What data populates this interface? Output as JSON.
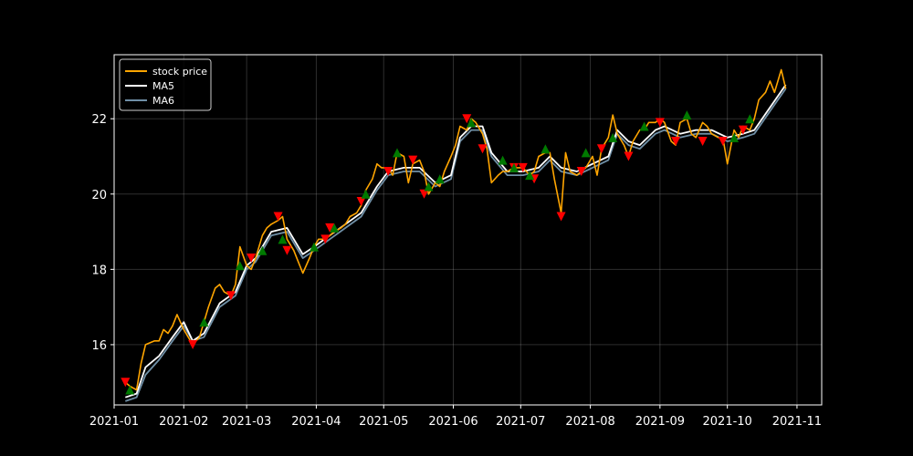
{
  "chart_data": {
    "type": "line",
    "title": "",
    "xlabel": "",
    "ylabel": "",
    "background": "#000000",
    "grid": true,
    "legend_position": "top-left",
    "xlim": [
      "2021-01-01",
      "2021-11-12"
    ],
    "ylim": [
      14.4,
      23.7
    ],
    "x_ticks": [
      "2021-01",
      "2021-02",
      "2021-03",
      "2021-04",
      "2021-05",
      "2021-06",
      "2021-07",
      "2021-08",
      "2021-09",
      "2021-10",
      "2021-11"
    ],
    "y_ticks": [
      16,
      18,
      20,
      22
    ],
    "series": [
      {
        "name": "stock price",
        "color": "#ffa500",
        "points": [
          [
            "2021-01-06",
            15.0
          ],
          [
            "2021-01-08",
            14.9
          ],
          [
            "2021-01-11",
            14.8
          ],
          [
            "2021-01-13",
            15.5
          ],
          [
            "2021-01-15",
            16.0
          ],
          [
            "2021-01-19",
            16.1
          ],
          [
            "2021-01-21",
            16.1
          ],
          [
            "2021-01-23",
            16.4
          ],
          [
            "2021-01-25",
            16.3
          ],
          [
            "2021-01-27",
            16.5
          ],
          [
            "2021-01-29",
            16.8
          ],
          [
            "2021-02-01",
            16.4
          ],
          [
            "2021-02-03",
            16.2
          ],
          [
            "2021-02-05",
            16.0
          ],
          [
            "2021-02-08",
            16.2
          ],
          [
            "2021-02-10",
            16.6
          ],
          [
            "2021-02-12",
            17.0
          ],
          [
            "2021-02-15",
            17.5
          ],
          [
            "2021-02-17",
            17.6
          ],
          [
            "2021-02-19",
            17.4
          ],
          [
            "2021-02-22",
            17.3
          ],
          [
            "2021-02-24",
            17.6
          ],
          [
            "2021-02-26",
            18.6
          ],
          [
            "2021-03-01",
            18.1
          ],
          [
            "2021-03-03",
            18.0
          ],
          [
            "2021-03-05",
            18.3
          ],
          [
            "2021-03-08",
            18.9
          ],
          [
            "2021-03-10",
            19.1
          ],
          [
            "2021-03-12",
            19.2
          ],
          [
            "2021-03-15",
            19.3
          ],
          [
            "2021-03-17",
            19.4
          ],
          [
            "2021-03-19",
            18.8
          ],
          [
            "2021-03-22",
            18.5
          ],
          [
            "2021-03-24",
            18.2
          ],
          [
            "2021-03-26",
            17.9
          ],
          [
            "2021-03-29",
            18.3
          ],
          [
            "2021-03-31",
            18.6
          ],
          [
            "2021-04-02",
            18.8
          ],
          [
            "2021-04-05",
            18.8
          ],
          [
            "2021-04-07",
            18.9
          ],
          [
            "2021-04-09",
            19.0
          ],
          [
            "2021-04-12",
            19.1
          ],
          [
            "2021-04-14",
            19.2
          ],
          [
            "2021-04-16",
            19.4
          ],
          [
            "2021-04-19",
            19.5
          ],
          [
            "2021-04-21",
            19.7
          ],
          [
            "2021-04-23",
            20.1
          ],
          [
            "2021-04-26",
            20.4
          ],
          [
            "2021-04-28",
            20.8
          ],
          [
            "2021-04-30",
            20.7
          ],
          [
            "2021-05-03",
            20.7
          ],
          [
            "2021-05-05",
            20.5
          ],
          [
            "2021-05-07",
            21.1
          ],
          [
            "2021-05-10",
            21.0
          ],
          [
            "2021-05-12",
            20.3
          ],
          [
            "2021-05-14",
            20.8
          ],
          [
            "2021-05-17",
            20.9
          ],
          [
            "2021-05-19",
            20.6
          ],
          [
            "2021-05-21",
            20.0
          ],
          [
            "2021-05-24",
            20.3
          ],
          [
            "2021-05-26",
            20.2
          ],
          [
            "2021-05-28",
            20.6
          ],
          [
            "2021-05-31",
            21.0
          ],
          [
            "2021-06-02",
            21.3
          ],
          [
            "2021-06-04",
            21.8
          ],
          [
            "2021-06-07",
            21.7
          ],
          [
            "2021-06-09",
            22.0
          ],
          [
            "2021-06-11",
            21.9
          ],
          [
            "2021-06-14",
            21.6
          ],
          [
            "2021-06-16",
            21.2
          ],
          [
            "2021-06-18",
            20.3
          ],
          [
            "2021-06-21",
            20.5
          ],
          [
            "2021-06-23",
            20.6
          ],
          [
            "2021-06-25",
            20.6
          ],
          [
            "2021-06-28",
            20.7
          ],
          [
            "2021-06-30",
            20.7
          ],
          [
            "2021-07-02",
            20.7
          ],
          [
            "2021-07-05",
            20.5
          ],
          [
            "2021-07-07",
            20.6
          ],
          [
            "2021-07-09",
            21.0
          ],
          [
            "2021-07-12",
            21.1
          ],
          [
            "2021-07-14",
            21.1
          ],
          [
            "2021-07-16",
            20.4
          ],
          [
            "2021-07-19",
            19.5
          ],
          [
            "2021-07-21",
            21.1
          ],
          [
            "2021-07-23",
            20.6
          ],
          [
            "2021-07-26",
            20.5
          ],
          [
            "2021-07-28",
            20.6
          ],
          [
            "2021-07-30",
            20.7
          ],
          [
            "2021-08-02",
            21.0
          ],
          [
            "2021-08-04",
            20.5
          ],
          [
            "2021-08-06",
            21.2
          ],
          [
            "2021-08-09",
            21.5
          ],
          [
            "2021-08-11",
            22.1
          ],
          [
            "2021-08-13",
            21.6
          ],
          [
            "2021-08-16",
            21.3
          ],
          [
            "2021-08-18",
            21.0
          ],
          [
            "2021-08-20",
            21.4
          ],
          [
            "2021-08-23",
            21.7
          ],
          [
            "2021-08-25",
            21.7
          ],
          [
            "2021-08-27",
            21.9
          ],
          [
            "2021-08-30",
            21.9
          ],
          [
            "2021-09-01",
            22.0
          ],
          [
            "2021-09-03",
            21.9
          ],
          [
            "2021-09-06",
            21.4
          ],
          [
            "2021-09-08",
            21.3
          ],
          [
            "2021-09-10",
            21.9
          ],
          [
            "2021-09-13",
            22.0
          ],
          [
            "2021-09-15",
            21.6
          ],
          [
            "2021-09-17",
            21.5
          ],
          [
            "2021-09-20",
            21.9
          ],
          [
            "2021-09-22",
            21.8
          ],
          [
            "2021-09-24",
            21.6
          ],
          [
            "2021-09-27",
            21.5
          ],
          [
            "2021-09-29",
            21.5
          ],
          [
            "2021-10-01",
            20.8
          ],
          [
            "2021-10-04",
            21.7
          ],
          [
            "2021-10-06",
            21.5
          ],
          [
            "2021-10-08",
            21.8
          ],
          [
            "2021-10-11",
            21.7
          ],
          [
            "2021-10-13",
            22.0
          ],
          [
            "2021-10-15",
            22.5
          ],
          [
            "2021-10-18",
            22.7
          ],
          [
            "2021-10-20",
            23.0
          ],
          [
            "2021-10-22",
            22.7
          ],
          [
            "2021-10-25",
            23.3
          ],
          [
            "2021-10-27",
            22.8
          ]
        ]
      },
      {
        "name": "MA5",
        "color": "#ffffff",
        "points": [
          [
            "2021-01-06",
            14.6
          ],
          [
            "2021-01-11",
            14.7
          ],
          [
            "2021-01-15",
            15.4
          ],
          [
            "2021-01-21",
            15.7
          ],
          [
            "2021-01-27",
            16.2
          ],
          [
            "2021-02-01",
            16.6
          ],
          [
            "2021-02-05",
            16.1
          ],
          [
            "2021-02-10",
            16.3
          ],
          [
            "2021-02-17",
            17.1
          ],
          [
            "2021-02-24",
            17.4
          ],
          [
            "2021-03-01",
            18.1
          ],
          [
            "2021-03-05",
            18.3
          ],
          [
            "2021-03-12",
            19.0
          ],
          [
            "2021-03-19",
            19.1
          ],
          [
            "2021-03-26",
            18.4
          ],
          [
            "2021-03-31",
            18.6
          ],
          [
            "2021-04-07",
            18.9
          ],
          [
            "2021-04-14",
            19.2
          ],
          [
            "2021-04-21",
            19.5
          ],
          [
            "2021-04-28",
            20.2
          ],
          [
            "2021-05-03",
            20.6
          ],
          [
            "2021-05-10",
            20.7
          ],
          [
            "2021-05-17",
            20.7
          ],
          [
            "2021-05-24",
            20.3
          ],
          [
            "2021-05-31",
            20.5
          ],
          [
            "2021-06-04",
            21.5
          ],
          [
            "2021-06-09",
            21.8
          ],
          [
            "2021-06-14",
            21.8
          ],
          [
            "2021-06-18",
            21.1
          ],
          [
            "2021-06-25",
            20.6
          ],
          [
            "2021-07-02",
            20.6
          ],
          [
            "2021-07-09",
            20.7
          ],
          [
            "2021-07-14",
            21.0
          ],
          [
            "2021-07-19",
            20.7
          ],
          [
            "2021-07-26",
            20.6
          ],
          [
            "2021-08-02",
            20.8
          ],
          [
            "2021-08-09",
            21.0
          ],
          [
            "2021-08-13",
            21.7
          ],
          [
            "2021-08-18",
            21.4
          ],
          [
            "2021-08-23",
            21.3
          ],
          [
            "2021-08-30",
            21.7
          ],
          [
            "2021-09-03",
            21.8
          ],
          [
            "2021-09-10",
            21.6
          ],
          [
            "2021-09-17",
            21.7
          ],
          [
            "2021-09-24",
            21.7
          ],
          [
            "2021-10-01",
            21.5
          ],
          [
            "2021-10-08",
            21.6
          ],
          [
            "2021-10-13",
            21.7
          ],
          [
            "2021-10-20",
            22.3
          ],
          [
            "2021-10-27",
            22.9
          ]
        ]
      },
      {
        "name": "MA6",
        "color": "#6f8fa6",
        "points": [
          [
            "2021-01-06",
            14.5
          ],
          [
            "2021-01-11",
            14.6
          ],
          [
            "2021-01-15",
            15.2
          ],
          [
            "2021-01-21",
            15.6
          ],
          [
            "2021-01-27",
            16.1
          ],
          [
            "2021-02-01",
            16.5
          ],
          [
            "2021-02-05",
            16.1
          ],
          [
            "2021-02-10",
            16.2
          ],
          [
            "2021-02-17",
            17.0
          ],
          [
            "2021-02-24",
            17.3
          ],
          [
            "2021-03-01",
            18.0
          ],
          [
            "2021-03-05",
            18.2
          ],
          [
            "2021-03-12",
            18.9
          ],
          [
            "2021-03-19",
            19.0
          ],
          [
            "2021-03-26",
            18.3
          ],
          [
            "2021-03-31",
            18.5
          ],
          [
            "2021-04-07",
            18.8
          ],
          [
            "2021-04-14",
            19.1
          ],
          [
            "2021-04-21",
            19.4
          ],
          [
            "2021-04-28",
            20.1
          ],
          [
            "2021-05-03",
            20.5
          ],
          [
            "2021-05-10",
            20.6
          ],
          [
            "2021-05-17",
            20.6
          ],
          [
            "2021-05-24",
            20.2
          ],
          [
            "2021-05-31",
            20.4
          ],
          [
            "2021-06-04",
            21.4
          ],
          [
            "2021-06-09",
            21.7
          ],
          [
            "2021-06-14",
            21.7
          ],
          [
            "2021-06-18",
            21.0
          ],
          [
            "2021-06-25",
            20.5
          ],
          [
            "2021-07-02",
            20.5
          ],
          [
            "2021-07-09",
            20.6
          ],
          [
            "2021-07-14",
            20.9
          ],
          [
            "2021-07-19",
            20.6
          ],
          [
            "2021-07-26",
            20.5
          ],
          [
            "2021-08-02",
            20.7
          ],
          [
            "2021-08-09",
            20.9
          ],
          [
            "2021-08-13",
            21.6
          ],
          [
            "2021-08-18",
            21.3
          ],
          [
            "2021-08-23",
            21.2
          ],
          [
            "2021-08-30",
            21.6
          ],
          [
            "2021-09-03",
            21.7
          ],
          [
            "2021-09-10",
            21.5
          ],
          [
            "2021-09-17",
            21.6
          ],
          [
            "2021-09-24",
            21.6
          ],
          [
            "2021-10-01",
            21.4
          ],
          [
            "2021-10-08",
            21.5
          ],
          [
            "2021-10-13",
            21.6
          ],
          [
            "2021-10-20",
            22.2
          ],
          [
            "2021-10-27",
            22.8
          ]
        ]
      }
    ],
    "sell_markers": {
      "color": "#ff0000",
      "shape": "triangle-down",
      "points": [
        [
          "2021-01-06",
          15.0
        ],
        [
          "2021-02-05",
          16.0
        ],
        [
          "2021-02-22",
          17.3
        ],
        [
          "2021-03-03",
          18.3
        ],
        [
          "2021-03-15",
          19.4
        ],
        [
          "2021-03-19",
          18.5
        ],
        [
          "2021-04-05",
          18.8
        ],
        [
          "2021-04-07",
          19.1
        ],
        [
          "2021-04-21",
          19.8
        ],
        [
          "2021-05-03",
          20.6
        ],
        [
          "2021-05-14",
          20.9
        ],
        [
          "2021-05-19",
          20.0
        ],
        [
          "2021-06-07",
          22.0
        ],
        [
          "2021-06-14",
          21.2
        ],
        [
          "2021-06-28",
          20.7
        ],
        [
          "2021-07-02",
          20.7
        ],
        [
          "2021-07-07",
          20.4
        ],
        [
          "2021-07-19",
          19.4
        ],
        [
          "2021-07-28",
          20.6
        ],
        [
          "2021-08-06",
          21.2
        ],
        [
          "2021-08-18",
          21.0
        ],
        [
          "2021-09-01",
          21.9
        ],
        [
          "2021-09-08",
          21.4
        ],
        [
          "2021-09-20",
          21.4
        ],
        [
          "2021-09-29",
          21.4
        ],
        [
          "2021-10-08",
          21.7
        ]
      ]
    },
    "buy_markers": {
      "color": "#007a00",
      "shape": "triangle-up",
      "points": [
        [
          "2021-01-08",
          14.8
        ],
        [
          "2021-02-10",
          16.6
        ],
        [
          "2021-02-26",
          18.1
        ],
        [
          "2021-03-08",
          18.5
        ],
        [
          "2021-03-17",
          18.8
        ],
        [
          "2021-03-31",
          18.6
        ],
        [
          "2021-04-09",
          19.1
        ],
        [
          "2021-04-23",
          20.0
        ],
        [
          "2021-05-07",
          21.1
        ],
        [
          "2021-05-21",
          20.2
        ],
        [
          "2021-05-26",
          20.4
        ],
        [
          "2021-06-09",
          21.9
        ],
        [
          "2021-06-23",
          20.9
        ],
        [
          "2021-06-28",
          20.7
        ],
        [
          "2021-07-05",
          20.5
        ],
        [
          "2021-07-12",
          21.2
        ],
        [
          "2021-07-30",
          21.1
        ],
        [
          "2021-08-11",
          21.5
        ],
        [
          "2021-08-25",
          21.8
        ],
        [
          "2021-09-13",
          22.1
        ],
        [
          "2021-10-04",
          21.5
        ],
        [
          "2021-10-11",
          22.0
        ]
      ]
    }
  }
}
